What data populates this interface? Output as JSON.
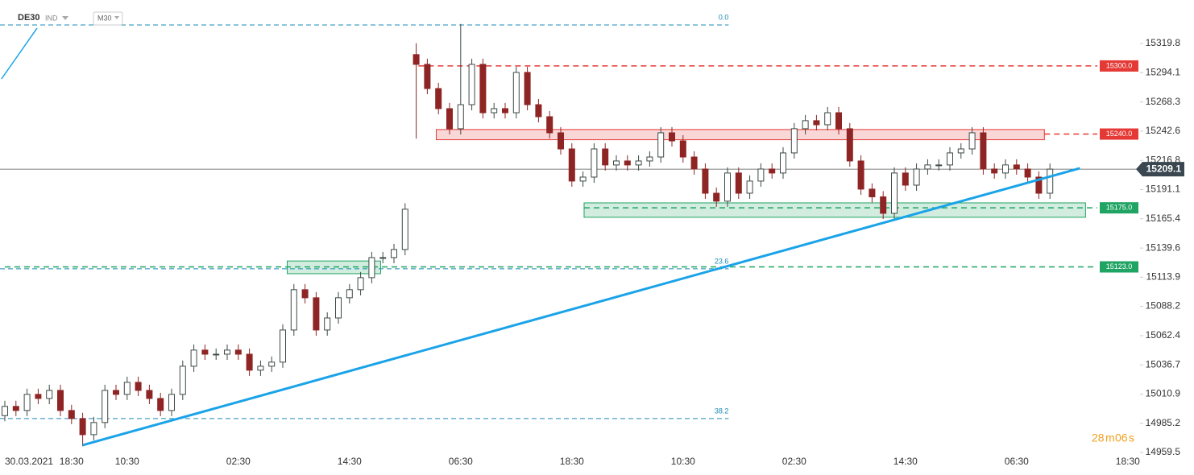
{
  "chart_data": {
    "type": "candlestick",
    "symbol": "DE30",
    "market": "IND",
    "interval": "M30",
    "categories": [
      "30.03.2021",
      null,
      null,
      null,
      null,
      null,
      "18:30",
      null,
      null,
      null,
      null,
      "10:30",
      null,
      null,
      null,
      null,
      null,
      null,
      null,
      null,
      null,
      "02:30",
      null,
      null,
      null,
      null,
      null,
      null,
      null,
      null,
      null,
      "14:30",
      null,
      null,
      null,
      null,
      null,
      null,
      null,
      null,
      null,
      "06:30",
      null,
      null,
      null,
      null,
      null,
      null,
      null,
      null,
      null,
      "18:30",
      null,
      null,
      null,
      null,
      null,
      null,
      null,
      null,
      null,
      "10:30",
      null,
      null,
      null,
      null,
      null,
      null,
      null,
      null,
      null,
      "02:30",
      null,
      null,
      null,
      null,
      null,
      null,
      null,
      null,
      null,
      "14:30",
      null,
      null,
      null,
      null,
      null,
      null,
      null,
      null,
      null,
      "06:30",
      null,
      null,
      null,
      null,
      null,
      null,
      null,
      null,
      null,
      "18:30"
    ],
    "open": [
      14992.0,
      15000.1,
      14996.5,
      15010.7,
      15007.1,
      15014.2,
      14996.5,
      14989.4,
      14975.2,
      14985.9,
      15014.2,
      15010.7,
      15021.3,
      15014.2,
      15007.1,
      14996.5,
      15010.7,
      15035.5,
      15049.7,
      15046.1,
      15046.1,
      15049.7,
      15046.1,
      15032.0,
      15035.5,
      15039.1,
      15067.4,
      15102.9,
      15095.8,
      15067.4,
      15078.0,
      15095.8,
      15102.9,
      15113.5,
      15131.2,
      15131.2,
      15138.3,
      15310.0,
      15301.4,
      15280.1,
      15262.4,
      15244.7,
      15265.9,
      15301.4,
      15258.8,
      15262.4,
      15258.8,
      15294.3,
      15265.9,
      15255.3,
      15241.1,
      15226.9,
      15198.6,
      15202.1,
      15226.9,
      15212.8,
      15216.3,
      15212.8,
      15216.3,
      15219.8,
      15241.1,
      15234.0,
      15219.8,
      15209.2,
      15187.9,
      15180.9,
      15205.7,
      15187.9,
      15198.6,
      15209.2,
      15205.7,
      15223.4,
      15244.7,
      15251.8,
      15248.2,
      15258.8,
      15244.7,
      15216.3,
      15191.5,
      15184.7,
      15170.2,
      15205.7,
      15195.0,
      15209.2,
      15212.8,
      15212.8,
      15223.4,
      15226.9,
      15241.1,
      15209.2,
      15205.7,
      15212.8,
      15209.2,
      15202.1,
      15187.9,
      null,
      null,
      null,
      null,
      null,
      null,
      null
    ],
    "high": [
      15005.1,
      15005.1,
      15015.7,
      15015.7,
      15019.2,
      15019.2,
      15001.5,
      14994.4,
      14990.9,
      15019.2,
      15019.2,
      15026.3,
      15026.3,
      15019.2,
      15012.1,
      15015.7,
      15040.5,
      15054.7,
      15054.7,
      15051.1,
      15054.7,
      15054.7,
      15051.1,
      15040.5,
      15044.1,
      15072.4,
      15107.9,
      15107.9,
      15100.8,
      15083.0,
      15100.8,
      15107.9,
      15118.5,
      15136.2,
      15136.2,
      15143.3,
      15179.0,
      15320.0,
      15306.4,
      15285.1,
      15267.4,
      15337.0,
      15306.4,
      15306.4,
      15267.4,
      15267.4,
      15299.3,
      15299.3,
      15270.9,
      15260.3,
      15246.1,
      15231.9,
      15207.1,
      15231.9,
      15231.9,
      15221.3,
      15221.3,
      15221.3,
      15224.8,
      15246.1,
      15246.1,
      15239.0,
      15224.8,
      15214.2,
      15192.9,
      15210.7,
      15210.7,
      15203.6,
      15214.2,
      15214.2,
      15228.4,
      15249.7,
      15256.8,
      15256.8,
      15263.8,
      15263.8,
      15249.7,
      15221.3,
      15196.5,
      15189.7,
      15210.7,
      15210.7,
      15214.2,
      15217.8,
      15217.8,
      15228.4,
      15231.9,
      15246.1,
      15246.1,
      15214.2,
      15217.8,
      15217.8,
      15214.2,
      15207.1,
      15214.1,
      null,
      null,
      null,
      null,
      null,
      null,
      null
    ],
    "low": [
      14987.0,
      14991.5,
      14991.5,
      15002.1,
      15002.1,
      14991.5,
      14984.4,
      14965.0,
      14970.2,
      14980.9,
      15005.7,
      15005.7,
      15009.2,
      15002.1,
      14991.5,
      14991.5,
      15005.7,
      15030.5,
      15041.1,
      15041.1,
      15041.1,
      15041.1,
      15027.0,
      15027.0,
      15030.5,
      15034.1,
      15062.4,
      15090.8,
      15062.4,
      15062.4,
      15073.0,
      15090.8,
      15097.9,
      15108.5,
      15126.2,
      15126.2,
      15133.3,
      15236.0,
      15275.1,
      15257.4,
      15239.7,
      15239.7,
      15260.9,
      15253.8,
      15253.8,
      15253.8,
      15253.8,
      15260.9,
      15250.3,
      15236.1,
      15221.9,
      15193.6,
      15193.6,
      15197.1,
      15207.8,
      15207.8,
      15207.8,
      15207.8,
      15211.3,
      15214.8,
      15229.0,
      15214.8,
      15204.2,
      15182.9,
      15175.9,
      15175.9,
      15182.9,
      15182.9,
      15193.6,
      15200.7,
      15200.7,
      15218.4,
      15239.7,
      15243.2,
      15243.2,
      15239.7,
      15211.3,
      15186.5,
      15179.7,
      15165.2,
      15165.2,
      15190.0,
      15190.0,
      15204.2,
      15207.8,
      15207.8,
      15218.4,
      15221.9,
      15204.2,
      15200.7,
      15200.7,
      15204.2,
      15197.1,
      15182.9,
      15182.9,
      null,
      null,
      null,
      null,
      null,
      null,
      null
    ],
    "close": [
      15000.1,
      14996.5,
      15010.7,
      15007.1,
      15014.2,
      14996.5,
      14989.4,
      14975.2,
      14985.9,
      15014.2,
      15010.7,
      15021.3,
      15014.2,
      15007.1,
      14996.5,
      15010.7,
      15035.5,
      15049.7,
      15046.1,
      15046.1,
      15049.7,
      15046.1,
      15032.0,
      15035.5,
      15039.1,
      15067.4,
      15102.9,
      15095.8,
      15067.4,
      15078.0,
      15095.8,
      15102.9,
      15113.5,
      15131.2,
      15131.2,
      15138.3,
      15173.8,
      15301.4,
      15280.1,
      15262.4,
      15244.7,
      15265.9,
      15301.4,
      15258.8,
      15262.4,
      15258.8,
      15294.3,
      15265.9,
      15255.3,
      15241.1,
      15226.9,
      15198.6,
      15202.1,
      15226.9,
      15212.8,
      15216.3,
      15212.8,
      15216.3,
      15219.8,
      15241.1,
      15234.0,
      15219.8,
      15209.2,
      15187.9,
      15180.9,
      15205.7,
      15187.9,
      15198.6,
      15209.2,
      15205.7,
      15223.4,
      15244.7,
      15251.8,
      15248.2,
      15258.8,
      15244.7,
      15216.3,
      15191.5,
      15184.7,
      15170.2,
      15205.7,
      15195.0,
      15209.2,
      15212.8,
      15212.8,
      15223.4,
      15226.9,
      15241.1,
      15209.2,
      15205.7,
      15212.8,
      15209.2,
      15202.1,
      15187.9,
      15209.1,
      null,
      null,
      null,
      null,
      null,
      null,
      null
    ],
    "up_color": "#3d4a45",
    "down_color": "#8e2424",
    "ylim": [
      14956.7,
      15358.1
    ],
    "yticks": [
      15319.8,
      15294.1,
      15268.3,
      15242.6,
      15216.8,
      15191.1,
      15165.4,
      15139.6,
      15113.9,
      15088.2,
      15062.4,
      15036.7,
      15010.9,
      14985.2,
      14959.5
    ],
    "current_price": 15209.1,
    "levels": [
      {
        "value": 15300,
        "label": "15300.0",
        "color": "#e53935",
        "start": 37.2
      },
      {
        "value": 15240,
        "label": "15240.0",
        "color": "#e53935",
        "start": 93.5
      },
      {
        "value": 15175,
        "label": "15175.0",
        "color": "#1fa463",
        "start": 52.1
      },
      {
        "value": 15123,
        "label": "15123.0",
        "color": "#1fa463",
        "start": 0
      }
    ],
    "zones": [
      {
        "top": 15244.0,
        "bottom": 15235.0,
        "start": 38.8,
        "end": 93.5,
        "color": "#e53935"
      },
      {
        "top": 15179.4,
        "bottom": 15166.7,
        "start": 52.1,
        "end": 97.2,
        "color": "#1fa463"
      },
      {
        "top": 15128.2,
        "bottom": 15117.0,
        "start": 25.4,
        "end": 33.8,
        "color": "#1fa463"
      }
    ],
    "fibonacci": {
      "end": 65.1,
      "color": "#1a8bb8",
      "levels": [
        {
          "ratio": {
            "value": 0,
            "label": "0.0"
          },
          "price": 15336.1
        },
        {
          "ratio": 23.6,
          "price": 15121.3
        },
        {
          "ratio": 38.2,
          "price": 14989.4
        }
      ]
    },
    "trendlines": [
      {
        "start": [
          7,
          14966.0
        ],
        "end": [
          96.7,
          15209.9
        ]
      },
      {
        "start": [
          -0.3,
          15288.6
        ],
        "end": [
          2.9,
          15333.3
        ]
      }
    ],
    "trend_color": "#1aa3e8",
    "timer": {
      "minutes": "28",
      "minutes_unit": "m",
      "seconds": "06",
      "seconds_unit": "s",
      "color": "#f0a020"
    }
  }
}
